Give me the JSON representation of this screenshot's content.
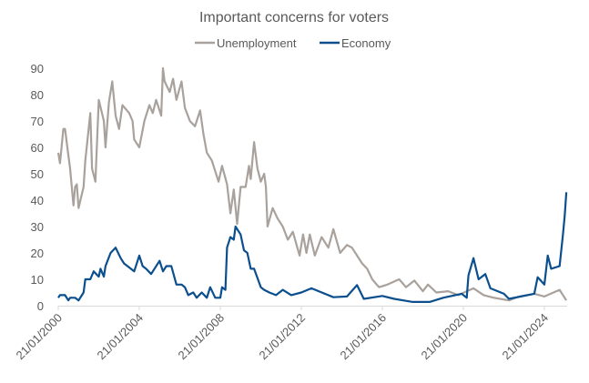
{
  "chart_data": {
    "type": "line",
    "title": "Important concerns for voters",
    "xlabel": "",
    "ylabel": "",
    "ylim": [
      0,
      90
    ],
    "yticks": [
      0,
      10,
      20,
      30,
      40,
      50,
      60,
      70,
      80,
      90
    ],
    "xticks": [
      "21/01/2000",
      "21/01/2004",
      "21/01/2008",
      "21/01/2012",
      "21/01/2016",
      "21/01/2020",
      "21/01/2024"
    ],
    "grid": false,
    "legend_position": "top",
    "series": [
      {
        "name": "Unemployment",
        "color": "#a9a19b",
        "points": [
          [
            "2000-01",
            58
          ],
          [
            "2000-02",
            54
          ],
          [
            "2000-04",
            67
          ],
          [
            "2000-05",
            67
          ],
          [
            "2000-07",
            57
          ],
          [
            "2000-08",
            52
          ],
          [
            "2000-10",
            38
          ],
          [
            "2000-11",
            45
          ],
          [
            "2000-12",
            46
          ],
          [
            "2001-01",
            37
          ],
          [
            "2001-04",
            45
          ],
          [
            "2001-05",
            55
          ],
          [
            "2001-08",
            73
          ],
          [
            "2001-09",
            52
          ],
          [
            "2001-11",
            47
          ],
          [
            "2002-01",
            78
          ],
          [
            "2002-04",
            70
          ],
          [
            "2002-05",
            60
          ],
          [
            "2002-07",
            77
          ],
          [
            "2002-09",
            85
          ],
          [
            "2002-11",
            72
          ],
          [
            "2003-01",
            67
          ],
          [
            "2003-03",
            76
          ],
          [
            "2003-07",
            73
          ],
          [
            "2003-09",
            70
          ],
          [
            "2003-10",
            63
          ],
          [
            "2004-01",
            60
          ],
          [
            "2004-04",
            70
          ],
          [
            "2004-07",
            76
          ],
          [
            "2004-09",
            73
          ],
          [
            "2004-11",
            78
          ],
          [
            "2005-02",
            72
          ],
          [
            "2005-03",
            90
          ],
          [
            "2005-04",
            85
          ],
          [
            "2005-07",
            81
          ],
          [
            "2005-09",
            86
          ],
          [
            "2005-11",
            78
          ],
          [
            "2006-02",
            85
          ],
          [
            "2006-04",
            75
          ],
          [
            "2006-07",
            70
          ],
          [
            "2006-10",
            68
          ],
          [
            "2007-01",
            74
          ],
          [
            "2007-03",
            65
          ],
          [
            "2007-05",
            58
          ],
          [
            "2007-08",
            55
          ],
          [
            "2007-12",
            47
          ],
          [
            "2008-02",
            53
          ],
          [
            "2008-05",
            46
          ],
          [
            "2008-07",
            35
          ],
          [
            "2008-09",
            44
          ],
          [
            "2008-11",
            31
          ],
          [
            "2009-01",
            45
          ],
          [
            "2009-04",
            45
          ],
          [
            "2009-06",
            53
          ],
          [
            "2009-07",
            48
          ],
          [
            "2009-09",
            62
          ],
          [
            "2009-11",
            52
          ],
          [
            "2010-01",
            47
          ],
          [
            "2010-03",
            50
          ],
          [
            "2010-04",
            45
          ],
          [
            "2010-05",
            30
          ],
          [
            "2010-08",
            37
          ],
          [
            "2010-11",
            33
          ],
          [
            "2011-02",
            30
          ],
          [
            "2011-05",
            25
          ],
          [
            "2011-08",
            28
          ],
          [
            "2011-12",
            19
          ],
          [
            "2012-02",
            27
          ],
          [
            "2012-04",
            20
          ],
          [
            "2012-06",
            27
          ],
          [
            "2012-09",
            19
          ],
          [
            "2013-01",
            26
          ],
          [
            "2013-05",
            22
          ],
          [
            "2013-08",
            29
          ],
          [
            "2013-12",
            20
          ],
          [
            "2014-04",
            23
          ],
          [
            "2014-07",
            22
          ],
          [
            "2015-01",
            16
          ],
          [
            "2015-04",
            14
          ],
          [
            "2015-07",
            10
          ],
          [
            "2015-11",
            7
          ],
          [
            "2016-04",
            8
          ],
          [
            "2016-11",
            10
          ],
          [
            "2017-03",
            7
          ],
          [
            "2017-08",
            9.5
          ],
          [
            "2018-01",
            5.5
          ],
          [
            "2018-04",
            8
          ],
          [
            "2018-09",
            5
          ],
          [
            "2019-04",
            5.5
          ],
          [
            "2019-10",
            4
          ],
          [
            "2020-07",
            6.6
          ],
          [
            "2021-01",
            4
          ],
          [
            "2021-07",
            3
          ],
          [
            "2022-04",
            2
          ],
          [
            "2022-10",
            3.5
          ],
          [
            "2023-07",
            4.5
          ],
          [
            "2024-01",
            3.5
          ],
          [
            "2024-10",
            6
          ],
          [
            "2025-02",
            2
          ]
        ]
      },
      {
        "name": "Economy",
        "color": "#0b4f8e",
        "points": [
          [
            "2000-01",
            3
          ],
          [
            "2000-02",
            4
          ],
          [
            "2000-05",
            4
          ],
          [
            "2000-07",
            2
          ],
          [
            "2000-08",
            3
          ],
          [
            "2000-11",
            3
          ],
          [
            "2001-01",
            2
          ],
          [
            "2001-03",
            4
          ],
          [
            "2001-04",
            5
          ],
          [
            "2001-05",
            10
          ],
          [
            "2001-08",
            10
          ],
          [
            "2001-10",
            13
          ],
          [
            "2002-01",
            11
          ],
          [
            "2002-02",
            14
          ],
          [
            "2002-04",
            11
          ],
          [
            "2002-05",
            15
          ],
          [
            "2002-08",
            20
          ],
          [
            "2002-11",
            22
          ],
          [
            "2003-02",
            18
          ],
          [
            "2003-04",
            16
          ],
          [
            "2003-06",
            15
          ],
          [
            "2003-10",
            13
          ],
          [
            "2004-01",
            19
          ],
          [
            "2004-03",
            15
          ],
          [
            "2004-05",
            14
          ],
          [
            "2004-08",
            12
          ],
          [
            "2005-01",
            17
          ],
          [
            "2005-03",
            13
          ],
          [
            "2005-05",
            15
          ],
          [
            "2005-08",
            15
          ],
          [
            "2005-11",
            8
          ],
          [
            "2006-02",
            8
          ],
          [
            "2006-04",
            7
          ],
          [
            "2006-06",
            4
          ],
          [
            "2006-09",
            5
          ],
          [
            "2006-11",
            3
          ],
          [
            "2007-02",
            5
          ],
          [
            "2007-05",
            3
          ],
          [
            "2007-07",
            7
          ],
          [
            "2007-10",
            3
          ],
          [
            "2008-01",
            3
          ],
          [
            "2008-02",
            7
          ],
          [
            "2008-04",
            6
          ],
          [
            "2008-05",
            22
          ],
          [
            "2008-07",
            26
          ],
          [
            "2008-09",
            25
          ],
          [
            "2008-10",
            30
          ],
          [
            "2009-01",
            27
          ],
          [
            "2009-03",
            21
          ],
          [
            "2009-05",
            20
          ],
          [
            "2009-07",
            14
          ],
          [
            "2009-09",
            14
          ],
          [
            "2010-01",
            7
          ],
          [
            "2010-03",
            6
          ],
          [
            "2010-06",
            5
          ],
          [
            "2010-10",
            4
          ],
          [
            "2011-02",
            6
          ],
          [
            "2011-07",
            4
          ],
          [
            "2012-01",
            5
          ],
          [
            "2012-07",
            6.6
          ],
          [
            "2013-08",
            3.2
          ],
          [
            "2014-04",
            3.5
          ],
          [
            "2014-10",
            7.8
          ],
          [
            "2015-02",
            2.6
          ],
          [
            "2016-01",
            3.7
          ],
          [
            "2016-08",
            2.6
          ],
          [
            "2017-07",
            1.4
          ],
          [
            "2018-05",
            1.4
          ],
          [
            "2019-01",
            3
          ],
          [
            "2019-12",
            4.5
          ],
          [
            "2020-03",
            3
          ],
          [
            "2020-04",
            11.5
          ],
          [
            "2020-07",
            18
          ],
          [
            "2020-10",
            10
          ],
          [
            "2021-02",
            12
          ],
          [
            "2021-05",
            6.6
          ],
          [
            "2022-01",
            4.5
          ],
          [
            "2022-04",
            2.6
          ],
          [
            "2023-07",
            4.5
          ],
          [
            "2023-09",
            10.8
          ],
          [
            "2024-01",
            8
          ],
          [
            "2024-03",
            19
          ],
          [
            "2024-05",
            14
          ],
          [
            "2024-10",
            15
          ],
          [
            "2024-12",
            27
          ],
          [
            "2025-01",
            34
          ],
          [
            "2025-02",
            43
          ]
        ]
      }
    ]
  }
}
